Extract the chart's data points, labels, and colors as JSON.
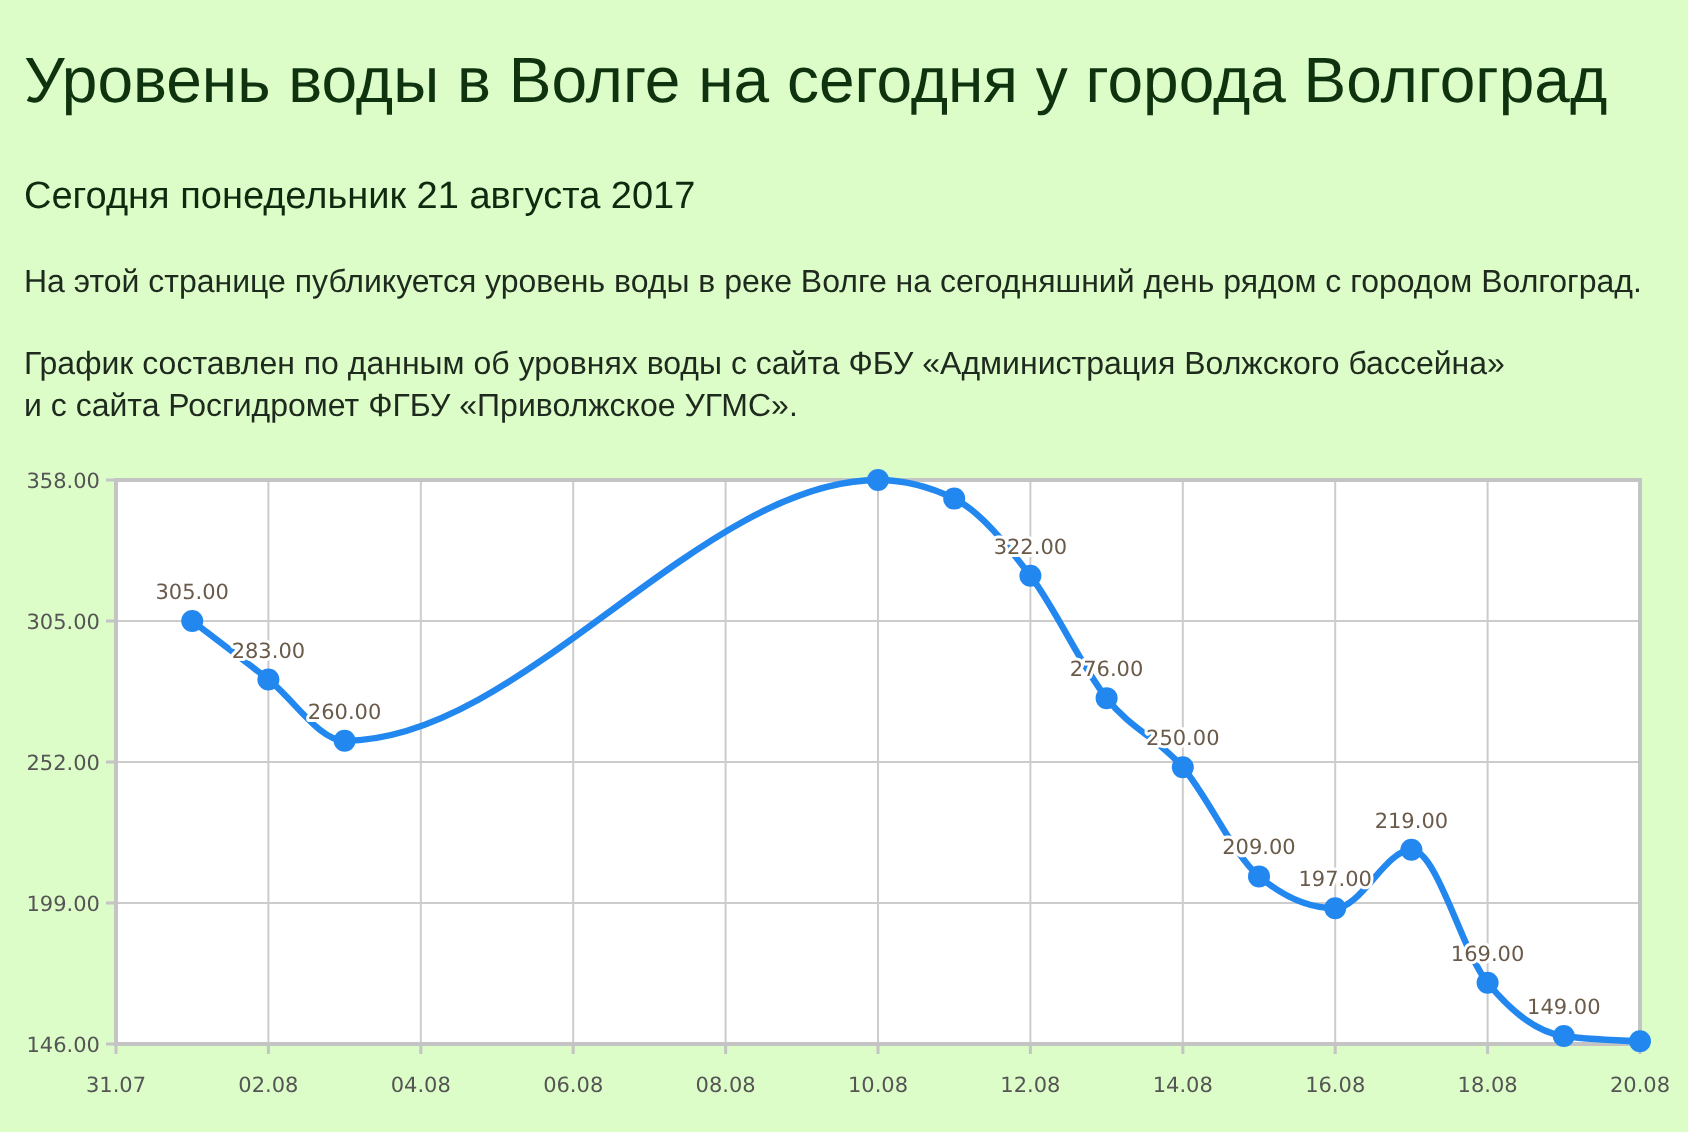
{
  "chart_data": {
    "type": "line",
    "title": "Уровень воды в Волге на сегодня у города Волгоград",
    "subtitle": "Сегодня понедельник 21 августа 2017",
    "annotations": [
      "На этой странице публикуется уровень воды в реке Волге на сегодняшний день рядом с городом Волгоград.",
      "График составлен по данным об уровнях воды с сайта ФБУ «Администрация Волжского бассейна»\nи с сайта Росгидромет ФГБУ «Приволжское УГМС»."
    ],
    "x": [
      "2017-08-01",
      "2017-08-02",
      "2017-08-03",
      "2017-08-10",
      "2017-08-11",
      "2017-08-12",
      "2017-08-13",
      "2017-08-14",
      "2017-08-15",
      "2017-08-16",
      "2017-08-17",
      "2017-08-18",
      "2017-08-19",
      "2017-08-20"
    ],
    "values": [
      305,
      283,
      260,
      358,
      351,
      322,
      276,
      250,
      209,
      197,
      219,
      169,
      149,
      147
    ],
    "value_labels": [
      "305.00",
      "283.00",
      "260.00",
      null,
      null,
      "322.00",
      "276.00",
      "250.00",
      "209.00",
      "197.00",
      "219.00",
      "169.00",
      "149.00",
      null
    ],
    "color": "#2288f0",
    "xlim": [
      "2017-07-31",
      "2017-08-20"
    ],
    "xticks": [
      {
        "value": "2017-07-31",
        "label": "31.07"
      },
      {
        "value": "2017-08-02",
        "label": "02.08"
      },
      {
        "value": "2017-08-04",
        "label": "04.08"
      },
      {
        "value": "2017-08-06",
        "label": "06.08"
      },
      {
        "value": "2017-08-08",
        "label": "08.08"
      },
      {
        "value": "2017-08-10",
        "label": "10.08"
      },
      {
        "value": "2017-08-12",
        "label": "12.08"
      },
      {
        "value": "2017-08-14",
        "label": "14.08"
      },
      {
        "value": "2017-08-16",
        "label": "16.08"
      },
      {
        "value": "2017-08-18",
        "label": "18.08"
      },
      {
        "value": "2017-08-20",
        "label": "20.08"
      }
    ],
    "ylim": [
      146,
      358
    ],
    "yticks": [
      {
        "value": 146,
        "label": "146.00"
      },
      {
        "value": 199,
        "label": "199.00"
      },
      {
        "value": 252,
        "label": "252.00"
      },
      {
        "value": 305,
        "label": "305.00"
      },
      {
        "value": 358,
        "label": "358.00"
      }
    ],
    "grid": true,
    "marker": "circle"
  }
}
